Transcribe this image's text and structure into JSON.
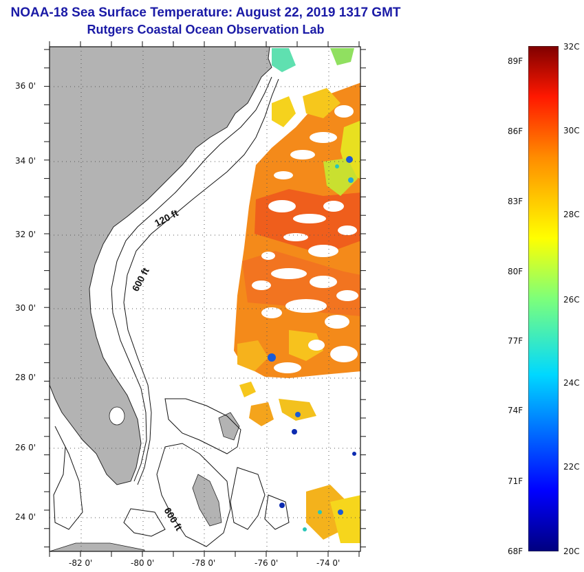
{
  "title": "NOAA-18 Sea Surface Temperature:  August 22, 2019 1317 GMT",
  "subtitle": "Rutgers Coastal Ocean Observation Lab",
  "map": {
    "lon_labels": [
      "-82 0'",
      "-80 0'",
      "-78 0'",
      "-76 0'",
      "-74 0'"
    ],
    "lat_labels": [
      "36 0'",
      "34 0'",
      "32 0'",
      "30 0'",
      "28 0'",
      "26 0'",
      "24 0'"
    ],
    "contour_labels": [
      "120 ft",
      "600 ft",
      "600 ft"
    ],
    "land_color": "#b3b3b3"
  },
  "colorbar": {
    "celsius_labels": [
      "32C",
      "30C",
      "28C",
      "26C",
      "24C",
      "22C",
      "20C"
    ],
    "fahrenheit_labels": [
      "89F",
      "86F",
      "83F",
      "80F",
      "77F",
      "74F",
      "71F",
      "68F"
    ],
    "min_c": 20,
    "max_c": 32
  }
}
